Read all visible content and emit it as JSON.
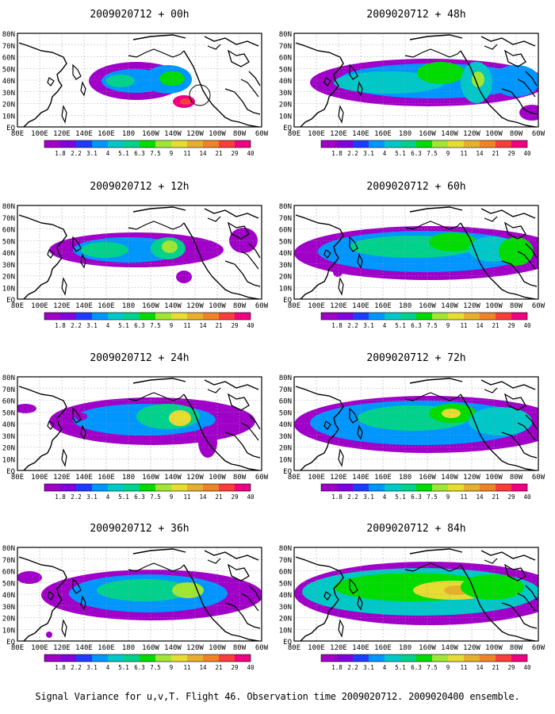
{
  "panels": [
    {
      "title": "2009020712 + 00h"
    },
    {
      "title": "2009020712 + 48h"
    },
    {
      "title": "2009020712 + 12h"
    },
    {
      "title": "2009020712 + 60h"
    },
    {
      "title": "2009020712 + 24h"
    },
    {
      "title": "2009020712 + 72h"
    },
    {
      "title": "2009020712 + 36h"
    },
    {
      "title": "2009020712 + 84h"
    }
  ],
  "lat_labels": [
    "80N",
    "70N",
    "60N",
    "50N",
    "40N",
    "30N",
    "20N",
    "10N",
    "EQ"
  ],
  "lon_labels": [
    "80E",
    "100E",
    "120E",
    "140E",
    "160E",
    "180",
    "160W",
    "140W",
    "120W",
    "100W",
    "80W",
    "60W"
  ],
  "colorbar": {
    "labels": [
      "1.8",
      "2.2",
      "3.1",
      "4",
      "5.1",
      "6.3",
      "7.5",
      "9",
      "11",
      "14",
      "21",
      "29",
      "40"
    ],
    "colors": [
      "#a000c8",
      "#8200dc",
      "#1e3cff",
      "#0096ff",
      "#00c8c8",
      "#00d28c",
      "#00dc00",
      "#a0e632",
      "#e6dc32",
      "#e6af2d",
      "#f08228",
      "#fa3c3c",
      "#f00082"
    ]
  },
  "caption": "Signal Variance for u,v,T. Flight 46. Observation time 2009020712. 2009020400 ensemble."
}
